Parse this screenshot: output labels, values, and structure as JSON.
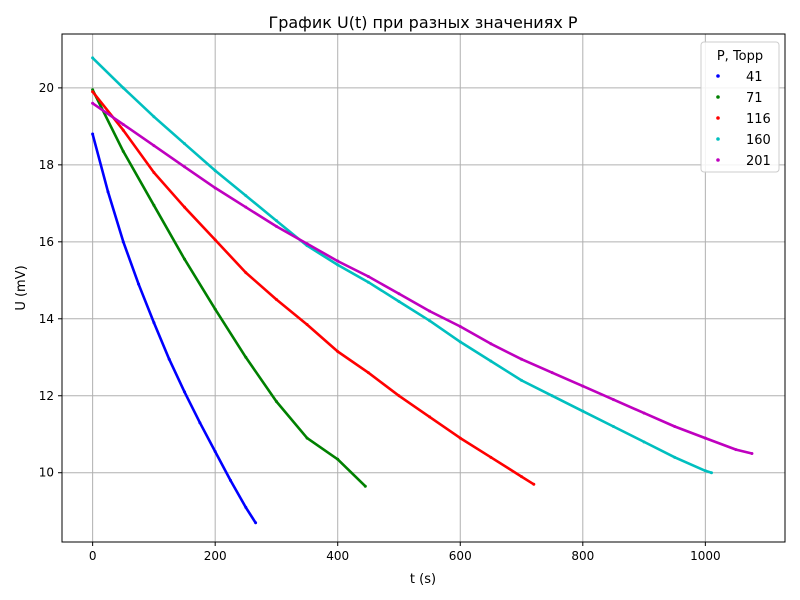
{
  "chart_data": {
    "type": "scatter",
    "title": "График U(t) при разных значениях P",
    "xlabel": "t (s)",
    "ylabel": "U (mV)",
    "xlim": [
      -50,
      1130
    ],
    "ylim": [
      8.2,
      21.4
    ],
    "xticks": [
      0,
      200,
      400,
      600,
      800,
      1000
    ],
    "yticks": [
      10,
      12,
      14,
      16,
      18,
      20
    ],
    "grid": true,
    "legend": {
      "title": "P, Topp",
      "placement": "top-right"
    },
    "series": [
      {
        "name": "41",
        "color": "#0000ff",
        "x": [
          0,
          25,
          50,
          75,
          100,
          125,
          150,
          175,
          200,
          225,
          250,
          266
        ],
        "y": [
          18.8,
          17.3,
          16.0,
          14.9,
          13.9,
          12.95,
          12.1,
          11.3,
          10.55,
          9.8,
          9.1,
          8.7
        ]
      },
      {
        "name": "71",
        "color": "#008000",
        "x": [
          0,
          50,
          100,
          150,
          200,
          250,
          300,
          350,
          400,
          445
        ],
        "y": [
          19.95,
          18.35,
          16.95,
          15.55,
          14.25,
          13.0,
          11.85,
          10.9,
          10.35,
          9.65
        ]
      },
      {
        "name": "116",
        "color": "#ff0000",
        "x": [
          0,
          50,
          100,
          150,
          200,
          250,
          300,
          350,
          400,
          450,
          500,
          550,
          600,
          650,
          700,
          720
        ],
        "y": [
          19.9,
          18.9,
          17.8,
          16.9,
          16.05,
          15.2,
          14.5,
          13.85,
          13.15,
          12.6,
          12.0,
          11.45,
          10.9,
          10.4,
          9.9,
          9.7
        ]
      },
      {
        "name": "160",
        "color": "#00bfbf",
        "x": [
          0,
          50,
          100,
          150,
          200,
          250,
          300,
          350,
          400,
          450,
          500,
          550,
          600,
          650,
          700,
          750,
          800,
          850,
          900,
          950,
          1000,
          1010
        ],
        "y": [
          20.78,
          20.0,
          19.25,
          18.55,
          17.85,
          17.2,
          16.55,
          15.9,
          15.4,
          14.95,
          14.45,
          13.95,
          13.4,
          12.9,
          12.4,
          12.0,
          11.6,
          11.2,
          10.8,
          10.4,
          10.05,
          10.0
        ]
      },
      {
        "name": "201",
        "color": "#bf00bf",
        "x": [
          0,
          50,
          100,
          150,
          200,
          250,
          300,
          350,
          400,
          450,
          500,
          550,
          600,
          650,
          700,
          750,
          800,
          850,
          900,
          950,
          1000,
          1050,
          1076
        ],
        "y": [
          19.6,
          19.05,
          18.5,
          17.95,
          17.4,
          16.9,
          16.4,
          15.95,
          15.5,
          15.1,
          14.65,
          14.2,
          13.8,
          13.35,
          12.95,
          12.6,
          12.25,
          11.9,
          11.55,
          11.2,
          10.9,
          10.6,
          10.5
        ]
      }
    ]
  }
}
